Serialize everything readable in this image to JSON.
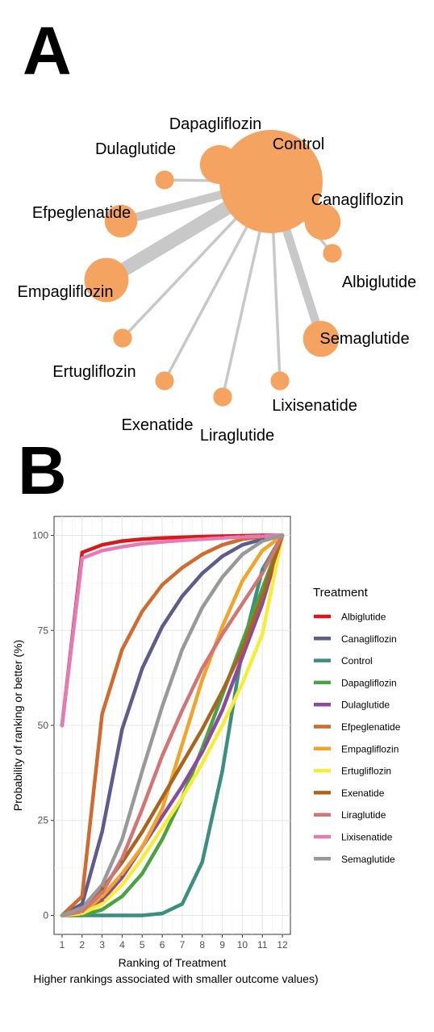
{
  "panel_a": {
    "letter": "A",
    "nodes": [
      {
        "name": "Control",
        "size": 1.0
      },
      {
        "name": "Dapagliflozin",
        "size": 0.12
      },
      {
        "name": "Dulaglutide",
        "size": 0.02
      },
      {
        "name": "Canagliflozin",
        "size": 0.1
      },
      {
        "name": "Efpeglenatide",
        "size": 0.08
      },
      {
        "name": "Albiglutide",
        "size": 0.02
      },
      {
        "name": "Empagliflozin",
        "size": 0.16
      },
      {
        "name": "Semaglutide",
        "size": 0.1
      },
      {
        "name": "Ertugliflozin",
        "size": 0.02
      },
      {
        "name": "Lixisenatide",
        "size": 0.02
      },
      {
        "name": "Exenatide",
        "size": 0.02
      },
      {
        "name": "Liraglutide",
        "size": 0.02
      }
    ],
    "edges": [
      {
        "from": "Control",
        "to": "Dulaglutide",
        "weight": 1
      },
      {
        "from": "Control",
        "to": "Efpeglenatide",
        "weight": 3
      },
      {
        "from": "Control",
        "to": "Empagliflozin",
        "weight": 5
      },
      {
        "from": "Control",
        "to": "Ertugliflozin",
        "weight": 1
      },
      {
        "from": "Control",
        "to": "Exenatide",
        "weight": 1
      },
      {
        "from": "Control",
        "to": "Liraglutide",
        "weight": 1
      },
      {
        "from": "Control",
        "to": "Lixisenatide",
        "weight": 1
      },
      {
        "from": "Control",
        "to": "Semaglutide",
        "weight": 3
      },
      {
        "from": "Control",
        "to": "Albiglutide",
        "weight": 1
      }
    ],
    "node_color": "#F4A460",
    "edge_color": "#c8c8c8"
  },
  "panel_b": {
    "letter": "B",
    "legend_title": "Treatment"
  },
  "chart_data": {
    "type": "line",
    "xlabel": "Ranking of Treatment",
    "xlabel_note": "Higher rankings associated with smaller outcome values)",
    "ylabel": "Probability of ranking or better (%)",
    "x": [
      1,
      2,
      3,
      4,
      5,
      6,
      7,
      8,
      9,
      10,
      11,
      12
    ],
    "xlim": [
      0.6,
      12.4
    ],
    "ylim": [
      -5,
      105
    ],
    "y_ticks": [
      0,
      25,
      50,
      75,
      100
    ],
    "grid": true,
    "legend_position": "right",
    "series": [
      {
        "name": "Albiglutide",
        "color": "#D7191C",
        "values": [
          50,
          95.5,
          97.5,
          98.5,
          99,
          99.3,
          99.5,
          99.7,
          99.8,
          99.9,
          100,
          100
        ]
      },
      {
        "name": "Canagliflozin",
        "color": "#5E5C8B",
        "values": [
          0,
          3,
          22,
          49,
          65,
          76,
          84,
          90,
          94.5,
          97.5,
          99,
          100
        ]
      },
      {
        "name": "Control",
        "color": "#3C8F80",
        "values": [
          0,
          0,
          0,
          0,
          0,
          0.5,
          3,
          14,
          38,
          70,
          91,
          100
        ]
      },
      {
        "name": "Dapagliflozin",
        "color": "#4AA245",
        "values": [
          0,
          0,
          1.5,
          5,
          11,
          20,
          31,
          44,
          58,
          72,
          86,
          100
        ]
      },
      {
        "name": "Dulaglutide",
        "color": "#8B4A9E",
        "values": [
          0,
          0.5,
          4,
          10,
          18,
          26,
          34,
          43,
          54,
          68,
          82,
          100
        ]
      },
      {
        "name": "Efpeglenatide",
        "color": "#D06A2E",
        "values": [
          0,
          5,
          53,
          70,
          80,
          87,
          91.5,
          95,
          97.5,
          99,
          99.7,
          100
        ]
      },
      {
        "name": "Empagliflozin",
        "color": "#F2A42A",
        "values": [
          0,
          0.5,
          5,
          11,
          18,
          28,
          45,
          62,
          76,
          88,
          96,
          100
        ]
      },
      {
        "name": "Ertugliflozin",
        "color": "#F7EC38",
        "values": [
          0,
          0.5,
          3,
          8,
          15,
          23,
          31,
          40,
          50,
          61,
          74,
          100
        ]
      },
      {
        "name": "Exenatide",
        "color": "#A9651E",
        "values": [
          0,
          2,
          7,
          14,
          22,
          31,
          40,
          49,
          59,
          70,
          84,
          100
        ]
      },
      {
        "name": "Liraglutide",
        "color": "#D27575",
        "values": [
          0,
          1,
          6,
          15,
          28,
          42,
          54,
          65,
          74,
          82,
          90,
          100
        ]
      },
      {
        "name": "Lixisenatide",
        "color": "#E37CB5",
        "values": [
          50,
          94,
          96,
          97,
          97.8,
          98.3,
          98.7,
          99,
          99.3,
          99.6,
          99.8,
          100
        ]
      },
      {
        "name": "Semaglutide",
        "color": "#999999",
        "values": [
          0,
          2,
          8,
          20,
          38,
          55,
          70,
          81,
          89,
          95,
          98.5,
          100
        ]
      }
    ]
  }
}
